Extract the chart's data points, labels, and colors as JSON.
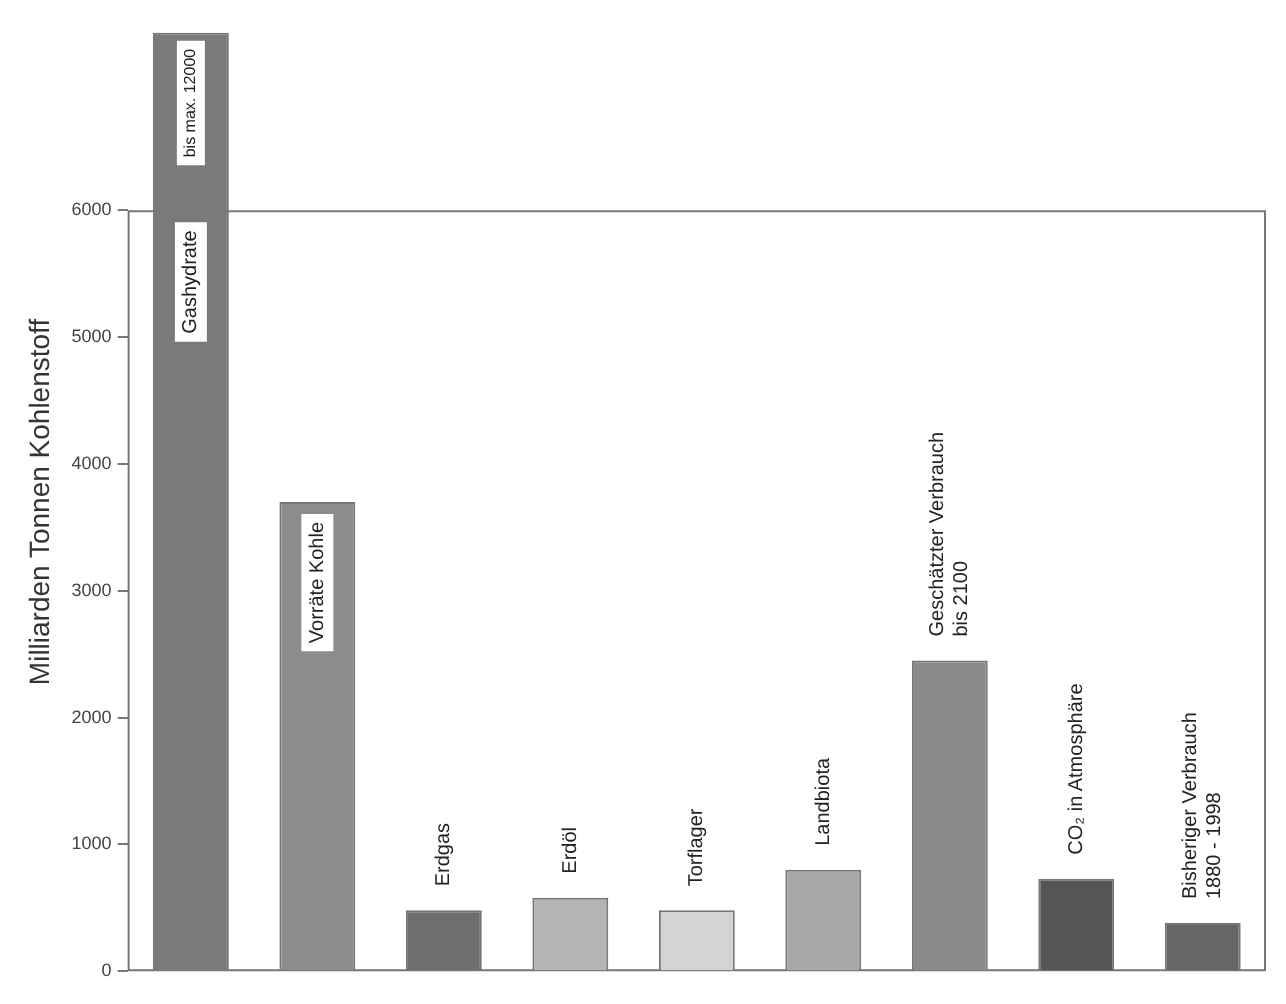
{
  "chart_data": {
    "type": "bar",
    "ylabel": "Milliarden Tonnen Kohlenstoff",
    "categories": [
      "Gashydrate",
      "Vorräte Kohle",
      "Erdgas",
      "Erdöl",
      "Torflager",
      "Landbiota",
      "Geschätzter Verbrauch\nbis 2100",
      "CO₂ in Atmosphäre",
      "Bisheriger Verbrauch\n1880 - 1998"
    ],
    "values": [
      7400,
      3700,
      480,
      580,
      480,
      800,
      2450,
      730,
      380
    ],
    "colors": [
      "#7a7a7a",
      "#8c8c8c",
      "#6e6e6e",
      "#b4b4b4",
      "#d4d4d4",
      "#a8a8a8",
      "#8a8a8a",
      "#555555",
      "#666666"
    ],
    "ylim": [
      0,
      7400
    ],
    "yticks": [
      0,
      1000,
      2000,
      3000,
      4000,
      5000,
      6000
    ],
    "grid": false,
    "legend": false,
    "annotations": [
      "bis max. 12000"
    ]
  }
}
